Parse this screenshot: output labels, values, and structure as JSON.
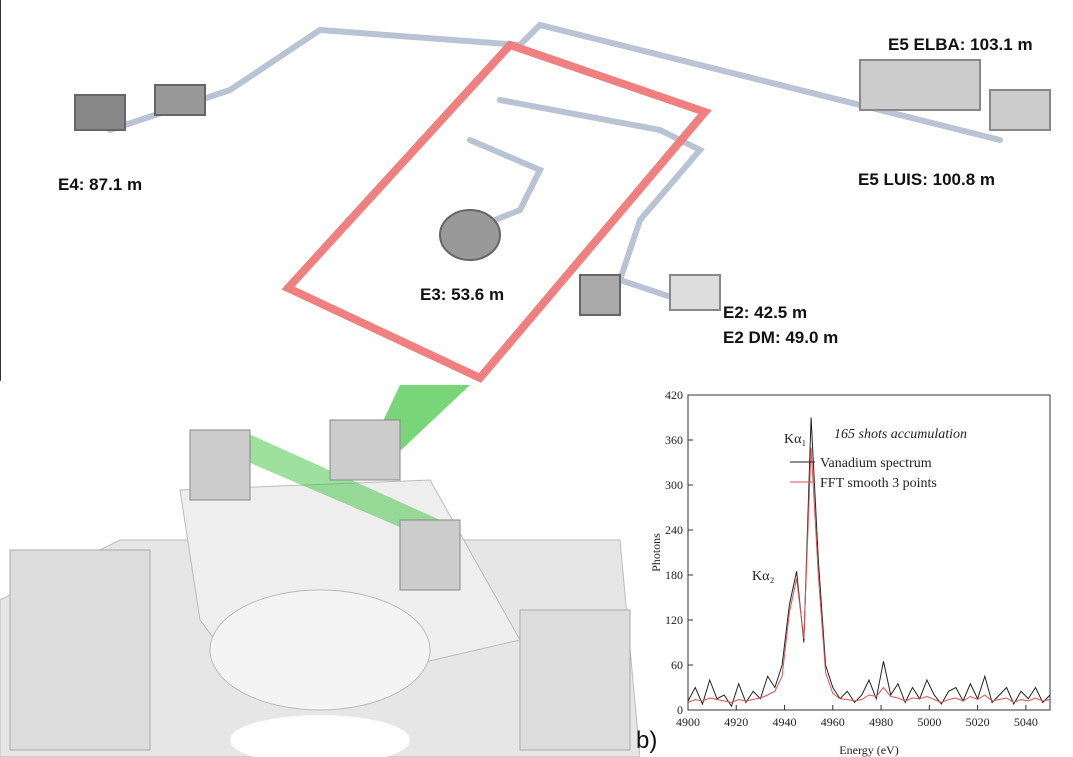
{
  "beamline": {
    "labels": [
      "E4: 87.1 m",
      "E5 ELBA: 103.1 m",
      "E5 LUIS: 100.8 m",
      "E3: 53.6 m",
      "E2: 42.5 m",
      "E2 DM: 49.0 m"
    ]
  },
  "panel_label": "b)",
  "chart_data": {
    "type": "line",
    "x_label": "Energy (eV)",
    "y_label": "Photons",
    "annotations": [
      "165 shots accumulation",
      "Kα₁",
      "Kα₂"
    ],
    "x": [
      4900,
      4903,
      4906,
      4909,
      4912,
      4915,
      4918,
      4921,
      4924,
      4927,
      4930,
      4933,
      4936,
      4939,
      4942,
      4945,
      4948,
      4951,
      4954,
      4957,
      4960,
      4963,
      4966,
      4969,
      4972,
      4975,
      4978,
      4981,
      4984,
      4987,
      4990,
      4993,
      4996,
      4999,
      5002,
      5005,
      5008,
      5011,
      5014,
      5017,
      5020,
      5023,
      5026,
      5029,
      5032,
      5035,
      5038,
      5041,
      5044,
      5047,
      5050
    ],
    "series": [
      {
        "name": "Vanadium spectrum",
        "color": "#222222",
        "values": [
          12,
          30,
          8,
          40,
          15,
          20,
          5,
          35,
          10,
          25,
          15,
          45,
          30,
          60,
          140,
          185,
          90,
          390,
          200,
          60,
          30,
          15,
          25,
          10,
          20,
          40,
          15,
          65,
          20,
          35,
          10,
          30,
          15,
          40,
          20,
          8,
          25,
          30,
          12,
          35,
          15,
          45,
          10,
          20,
          30,
          8,
          25,
          15,
          30,
          10,
          20
        ]
      },
      {
        "name": "FFT smooth 3 points",
        "color": "#e05050",
        "values": [
          10,
          14,
          12,
          16,
          14,
          12,
          10,
          14,
          12,
          14,
          16,
          20,
          25,
          45,
          130,
          175,
          95,
          350,
          180,
          50,
          22,
          15,
          14,
          12,
          14,
          20,
          18,
          30,
          18,
          16,
          12,
          16,
          15,
          18,
          14,
          10,
          14,
          16,
          12,
          18,
          14,
          20,
          12,
          14,
          16,
          10,
          14,
          12,
          16,
          12,
          14
        ]
      }
    ],
    "xlim": [
      4900,
      5050
    ],
    "xticks": [
      4900,
      4920,
      4940,
      4960,
      4980,
      5000,
      5020,
      5040
    ],
    "ylim": [
      0,
      420
    ],
    "yticks": [
      0,
      60,
      120,
      180,
      240,
      300,
      360,
      420
    ]
  }
}
